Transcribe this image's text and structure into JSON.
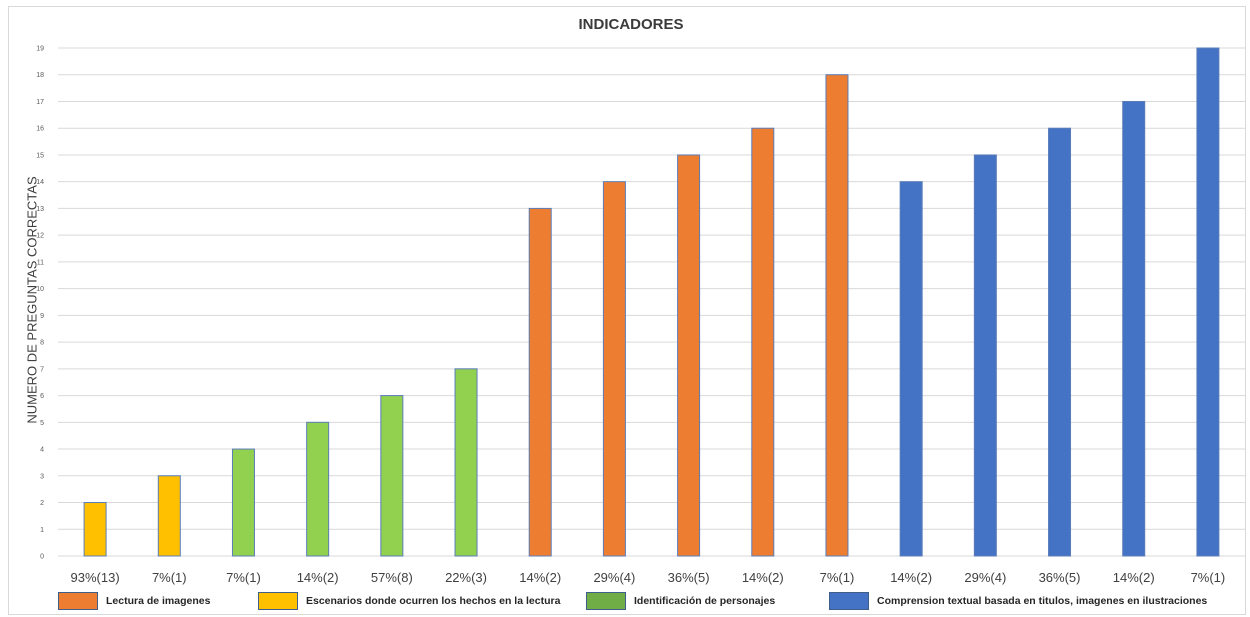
{
  "chart_data": {
    "type": "bar",
    "title": "INDICADORES",
    "xlabel": "",
    "ylabel": "NUMERO DE PREGUNTAS CORRECTAS",
    "ylim": [
      0,
      19
    ],
    "yticks": [
      0,
      1,
      2,
      3,
      4,
      5,
      6,
      7,
      8,
      9,
      10,
      11,
      12,
      13,
      14,
      15,
      16,
      17,
      18,
      19
    ],
    "grid": true,
    "legend_position": "bottom",
    "categories": [
      "93%(13)",
      "7%(1)",
      "7%(1)",
      "14%(2)",
      "57%(8)",
      "22%(3)",
      "14%(2)",
      "29%(4)",
      "36%(5)",
      "14%(2)",
      "7%(1)",
      "14%(2)",
      "29%(4)",
      "36%(5)",
      "14%(2)",
      "7%(1)"
    ],
    "values": [
      2,
      3,
      4,
      5,
      6,
      7,
      13,
      14,
      15,
      16,
      18,
      14,
      15,
      16,
      17,
      19
    ],
    "bar_colors": [
      "#ffc000",
      "#ffc000",
      "#92d050",
      "#92d050",
      "#92d050",
      "#92d050",
      "#ed7d31",
      "#ed7d31",
      "#ed7d31",
      "#ed7d31",
      "#ed7d31",
      "#4472c4",
      "#4472c4",
      "#4472c4",
      "#4472c4",
      "#4472c4"
    ],
    "legend": [
      {
        "label": "Lectura de imagenes",
        "color": "#ed7d31"
      },
      {
        "label": "Escenarios donde ocurren los hechos en la lectura",
        "color": "#ffc000"
      },
      {
        "label": "Identificación de personajes",
        "color": "#70ad47"
      },
      {
        "label": "Comprension textual basada en titulos, imagenes en ilustraciones",
        "color": "#4472c4"
      }
    ]
  }
}
